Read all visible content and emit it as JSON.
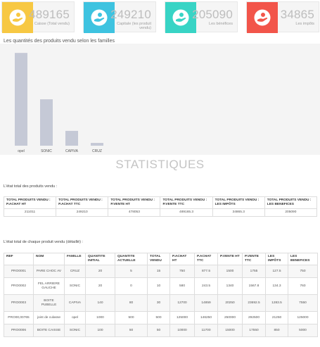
{
  "cards": [
    {
      "value": "489165",
      "label": "Caisse (Total vendu)",
      "color": "#f7c843",
      "icon": "hand-money-icon"
    },
    {
      "value": "249210",
      "label": "Capitale (les produit vendu)",
      "color": "#3ec3e0",
      "icon": "hand-money-icon"
    },
    {
      "value": "205090",
      "label": "Les bénéfices",
      "color": "#38d4c5",
      "icon": "hand-money-icon"
    },
    {
      "value": "34865",
      "label": "Les impôts",
      "color": "#f2554a",
      "icon": "hand-money-icon"
    }
  ],
  "chart_title": "Les quantités des produits vendu selon les familles",
  "chart_data": {
    "type": "bar",
    "categories": [
      "opel",
      "SONIC",
      "CAPIVA",
      "CRUZ"
    ],
    "values": [
      1000,
      500,
      160,
      30
    ],
    "title": "Les quantités des produits vendu selon les familles",
    "xlabel": "",
    "ylabel": "",
    "ylim": [
      0,
      1100
    ],
    "bar_color": "#c5c9d6",
    "grid": false
  },
  "stat_title": "STATISTIQUES",
  "summary": {
    "label": "L'état total des produits vendu :",
    "headers": [
      "TOTAL PRODUITS VENDU : P.ACHAT HT",
      "TOTAL PRODUITS VENDU : P.ACHAT TTC",
      "TOTAL PRODUITS VENDU : P.VENTE HT",
      "TOTAL PRODUITS VENDU : P.VENTE TTC",
      "TOTAL PRODUITS VENDU : LES IMPÔTS",
      "TOTAL PRODUITS VENDU : LES BENEFICES"
    ],
    "values": [
      "211011",
      "249210",
      "478053",
      "489165.3",
      "34865.3",
      "205090"
    ]
  },
  "detail": {
    "label": "L'état total de chaque produit vendu (détaillé) :",
    "headers": [
      "REF",
      "NOM",
      "FAMILLE",
      "QUANTITE INITIAL",
      "QUANTITE ACTUELLE",
      "TOTAL VENDU",
      "P.ACHAT HT",
      "P.ACHAT TTC",
      "P.VENTE HT",
      "P.VENTE TTC",
      "LES IMPÔTS",
      "LES BENEFICES"
    ],
    "rows": [
      [
        "PRO0001",
        "PARE CHOC AV",
        "CRUZ",
        "20",
        "5",
        "15",
        "750",
        "877.5",
        "1500",
        "1755",
        "127.5",
        "750"
      ],
      [
        "PRO0002",
        "FEL ARRIERE GAUCHE",
        "SONIC",
        "20",
        "0",
        "10",
        "580",
        "243.5",
        "1340",
        "1567.8",
        "134.3",
        "760"
      ],
      [
        "PRO0003",
        "BOITE PUBELLE",
        "CAPIVA",
        "140",
        "80",
        "30",
        "12700",
        "14859",
        "20250",
        "23692.5",
        "1283.5",
        "7550"
      ],
      [
        "PRO00,00765",
        "joint de culasse",
        "opel",
        "1000",
        "500",
        "500",
        "125000",
        "146250",
        "250000",
        "292500",
        "21250",
        "125000"
      ],
      [
        "PRO0006",
        "BOITE CAISSE",
        "SONIC",
        "100",
        "50",
        "50",
        "10000",
        "11700",
        "15000",
        "17550",
        "850",
        "5000"
      ]
    ]
  }
}
